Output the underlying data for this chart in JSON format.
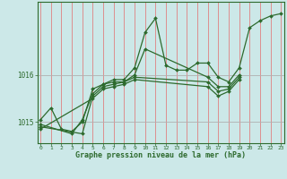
{
  "title": "Graphe pression niveau de la mer (hPa)",
  "bg_color": "#cce8e8",
  "line_color": "#2d6a2d",
  "grid_color_v": "#e08080",
  "grid_color_h": "#b0b0b0",
  "yticks": [
    1015,
    1016
  ],
  "xticks": [
    0,
    1,
    2,
    3,
    4,
    5,
    6,
    7,
    8,
    9,
    10,
    11,
    12,
    13,
    14,
    15,
    16,
    17,
    18,
    19,
    20,
    21,
    22,
    23
  ],
  "xlim": [
    -0.3,
    23.3
  ],
  "ylim": [
    1014.55,
    1017.55
  ],
  "series": [
    {
      "x": [
        0,
        1,
        2,
        3,
        4,
        5,
        6,
        7,
        8,
        9,
        10,
        11,
        12,
        13,
        14,
        15,
        16,
        17,
        18,
        19,
        20,
        21,
        22,
        23
      ],
      "y": [
        1015.05,
        1015.3,
        1014.85,
        1014.8,
        1015.0,
        1015.7,
        1015.8,
        1015.9,
        1015.9,
        1016.15,
        1016.9,
        1017.2,
        1016.2,
        1016.1,
        1016.1,
        1016.25,
        1016.25,
        1015.95,
        1015.85,
        1016.15,
        1017.0,
        1017.15,
        1017.25,
        1017.3
      ]
    },
    {
      "x": [
        0,
        3,
        4,
        5,
        6,
        7,
        8,
        9,
        10,
        16,
        17,
        18,
        19
      ],
      "y": [
        1014.95,
        1014.75,
        1015.05,
        1015.6,
        1015.8,
        1015.85,
        1015.85,
        1016.0,
        1016.55,
        1015.95,
        1015.75,
        1015.75,
        1016.0
      ]
    },
    {
      "x": [
        0,
        4,
        5,
        6,
        7,
        8,
        9,
        16,
        17,
        18,
        19
      ],
      "y": [
        1014.9,
        1014.75,
        1015.55,
        1015.75,
        1015.8,
        1015.85,
        1015.95,
        1015.85,
        1015.65,
        1015.7,
        1015.95
      ]
    },
    {
      "x": [
        0,
        5,
        6,
        7,
        8,
        9,
        16,
        17,
        18,
        19
      ],
      "y": [
        1014.85,
        1015.5,
        1015.7,
        1015.75,
        1015.8,
        1015.9,
        1015.75,
        1015.55,
        1015.65,
        1015.9
      ]
    }
  ]
}
